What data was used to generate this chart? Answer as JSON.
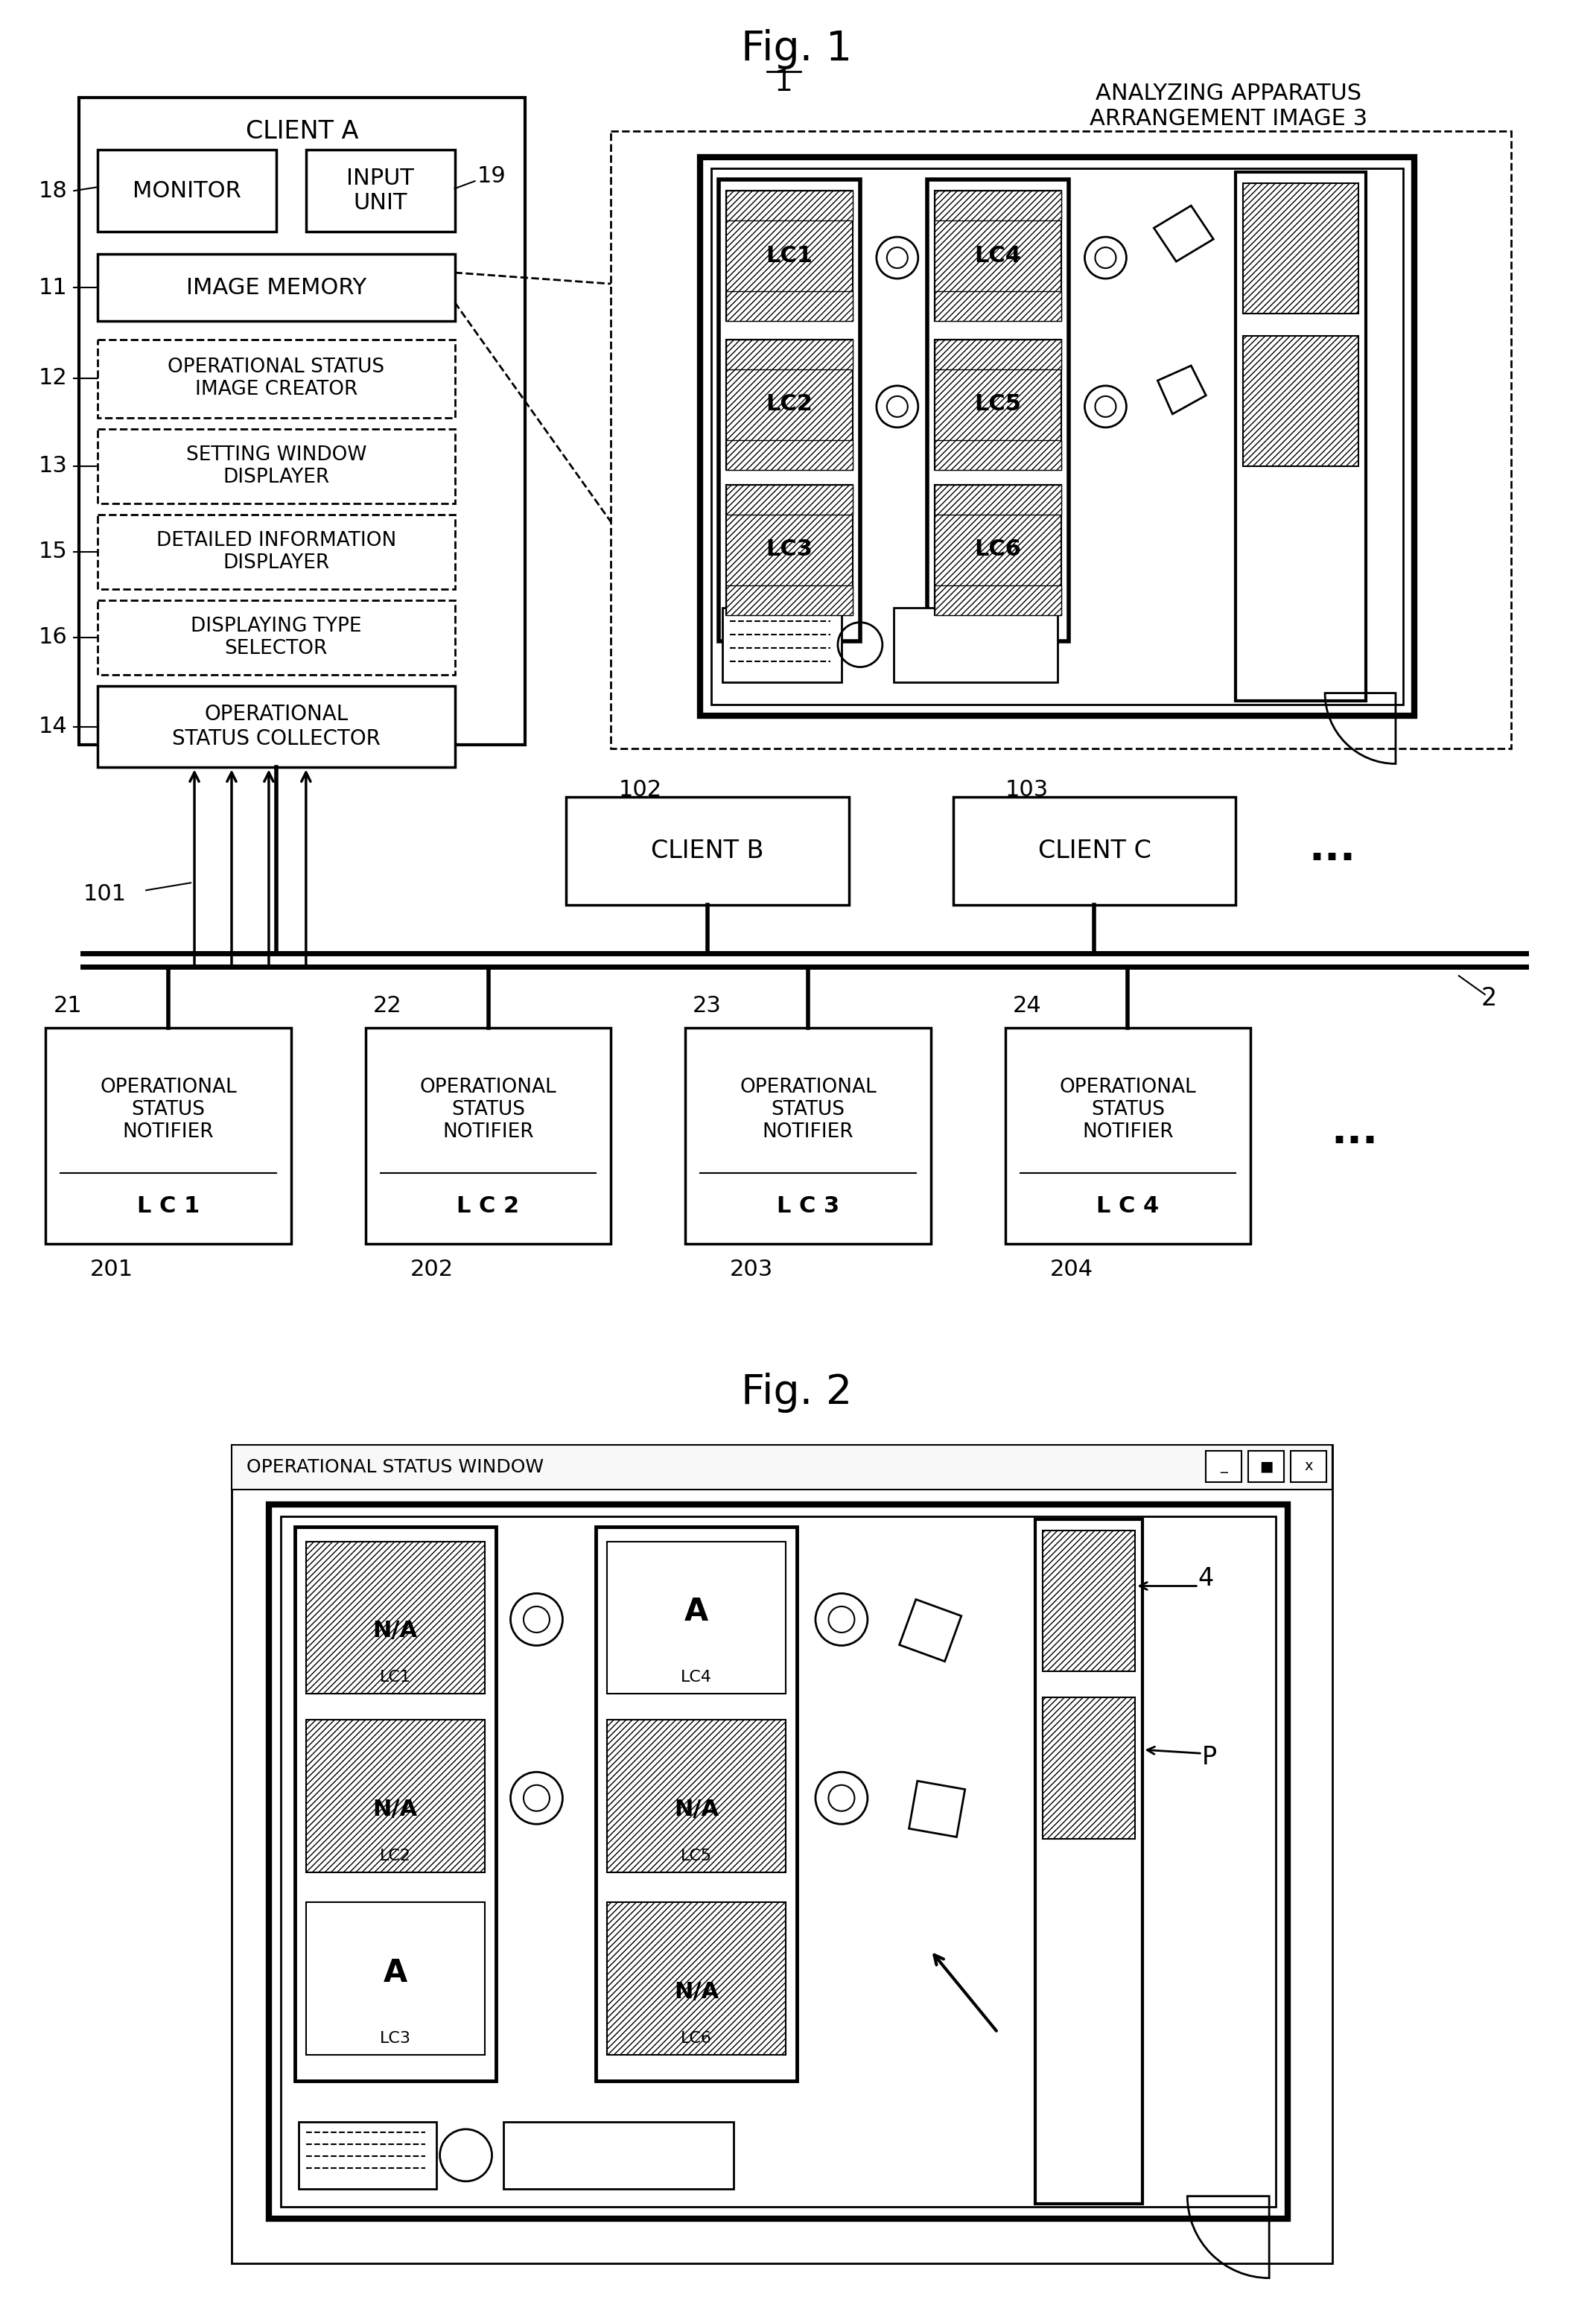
{
  "fig_width": 21.43,
  "fig_height": 31.11,
  "bg_color": "#ffffff",
  "title1": "Fig. 1",
  "title2": "Fig. 2",
  "client_a_label": "CLIENT A",
  "monitor_label": "MONITOR",
  "input_unit_label": "INPUT\nUNIT",
  "image_memory_label": "IMAGE MEMORY",
  "op_status_image_label": "OPERATIONAL STATUS\nIMAGE CREATOR",
  "setting_window_label": "SETTING WINDOW\nDISPLAYER",
  "detailed_info_label": "DETAILED INFORMATION\nDISPLAYER",
  "displaying_type_label": "DISPLAYING TYPE\nSELECTOR",
  "op_status_collector_label": "OPERATIONAL\nSTATUS COLLECTOR",
  "client_b_label": "CLIENT B",
  "client_c_label": "CLIENT C",
  "label_18": "18",
  "label_11": "11",
  "label_12": "12",
  "label_13": "13",
  "label_15": "15",
  "label_16": "16",
  "label_14": "14",
  "label_19": "19",
  "label_101": "101",
  "label_102": "102",
  "label_103": "103",
  "label_2": "2",
  "label_21": "21",
  "label_22": "22",
  "label_23": "23",
  "label_24": "24",
  "label_201": "201",
  "label_202": "202",
  "label_203": "203",
  "label_204": "204",
  "notifier_label": "OPERATIONAL\nSTATUS\nNOTIFIER",
  "analyzing_apparatus_label": "ANALYZING APPARATUS\nARRANGEMENT IMAGE 3",
  "op_status_window_label": "OPERATIONAL STATUS WINDOW",
  "label_4": "4",
  "label_P": "P",
  "label_1": "1"
}
